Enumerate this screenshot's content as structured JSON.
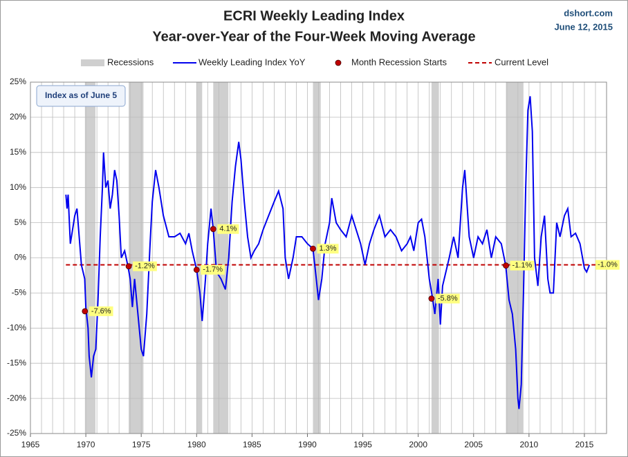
{
  "chart_data": {
    "type": "line",
    "title": "ECRI Weekly Leading Index",
    "subtitle": "Year-over-Year of the Four-Week Moving Average",
    "source": "dshort.com",
    "date": "June 12, 2015",
    "annotation": "Index as of June 5",
    "xlim": [
      1965,
      2017
    ],
    "xticks": [
      1965,
      1970,
      1975,
      1980,
      1985,
      1990,
      1995,
      2000,
      2005,
      2010,
      2015
    ],
    "ylim": [
      -25,
      25
    ],
    "yticks": [
      {
        "value": -25,
        "label": "-25%"
      },
      {
        "value": -20,
        "label": "-20%"
      },
      {
        "value": -15,
        "label": "-15%"
      },
      {
        "value": -10,
        "label": "-10%"
      },
      {
        "value": -5,
        "label": "-5%"
      },
      {
        "value": 0,
        "label": "0%"
      },
      {
        "value": 5,
        "label": "5%"
      },
      {
        "value": 10,
        "label": "10%"
      },
      {
        "value": 15,
        "label": "15%"
      },
      {
        "value": 20,
        "label": "20%"
      },
      {
        "value": 25,
        "label": "25%"
      }
    ],
    "grid": true,
    "recessions": {
      "name": "Recessions",
      "color": "#cfcfcf",
      "periods": [
        [
          1969.92,
          1970.87
        ],
        [
          1973.87,
          1975.2
        ],
        [
          1980.0,
          1980.5
        ],
        [
          1981.5,
          1982.87
        ],
        [
          1990.5,
          1991.2
        ],
        [
          2001.2,
          2001.87
        ],
        [
          2007.92,
          2009.5
        ]
      ]
    },
    "x": [
      1968.2,
      1968.3,
      1968.4,
      1968.6,
      1968.8,
      1969.0,
      1969.2,
      1969.4,
      1969.6,
      1969.9,
      1970.0,
      1970.2,
      1970.3,
      1970.5,
      1970.7,
      1970.9,
      1971.1,
      1971.3,
      1971.5,
      1971.6,
      1971.8,
      1972.0,
      1972.2,
      1972.4,
      1972.6,
      1972.8,
      1973.0,
      1973.2,
      1973.5,
      1973.8,
      1974.0,
      1974.2,
      1974.4,
      1974.7,
      1975.0,
      1975.2,
      1975.5,
      1975.8,
      1976.0,
      1976.3,
      1976.6,
      1977.0,
      1977.5,
      1978.0,
      1978.5,
      1979.0,
      1979.3,
      1979.6,
      1980.0,
      1980.3,
      1980.5,
      1980.8,
      1981.0,
      1981.3,
      1981.5,
      1981.8,
      1982.2,
      1982.6,
      1982.9,
      1983.2,
      1983.5,
      1983.8,
      1984.0,
      1984.3,
      1984.6,
      1984.9,
      1985.2,
      1985.6,
      1986.0,
      1986.5,
      1987.0,
      1987.4,
      1987.8,
      1988.0,
      1988.3,
      1988.7,
      1989.0,
      1989.5,
      1990.0,
      1990.5,
      1990.8,
      1991.0,
      1991.3,
      1991.6,
      1992.0,
      1992.2,
      1992.6,
      1993.0,
      1993.5,
      1994.0,
      1994.4,
      1994.8,
      1995.2,
      1995.6,
      1996.0,
      1996.5,
      1997.0,
      1997.5,
      1998.0,
      1998.5,
      1999.0,
      1999.3,
      1999.6,
      2000.0,
      2000.3,
      2000.6,
      2001.0,
      2001.3,
      2001.5,
      2001.8,
      2002.0,
      2002.2,
      2002.5,
      2002.8,
      2003.2,
      2003.6,
      2004.0,
      2004.2,
      2004.6,
      2005.0,
      2005.4,
      2005.8,
      2006.2,
      2006.6,
      2007.0,
      2007.5,
      2007.9,
      2008.2,
      2008.5,
      2008.8,
      2009.0,
      2009.1,
      2009.3,
      2009.5,
      2009.7,
      2009.9,
      2010.1,
      2010.3,
      2010.5,
      2010.8,
      2011.1,
      2011.4,
      2011.7,
      2011.9,
      2012.2,
      2012.5,
      2012.8,
      2013.2,
      2013.5,
      2013.8,
      2014.2,
      2014.6,
      2015.0,
      2015.2,
      2015.45
    ],
    "series": [
      {
        "name": "Weekly Leading Index YoY",
        "color": "#0000ee",
        "values": [
          9,
          7,
          9,
          2,
          4,
          6,
          7,
          3,
          -1,
          -3,
          -7,
          -10,
          -14,
          -17,
          -14,
          -13,
          -6,
          3,
          10,
          15,
          10,
          11,
          7,
          9,
          12.5,
          11,
          6,
          0,
          1,
          -1.2,
          -3,
          -7,
          -3,
          -8,
          -13,
          -14,
          -8,
          2,
          8,
          12.5,
          10,
          6,
          3,
          3,
          3.5,
          2,
          3.5,
          1,
          -1.7,
          -5,
          -9,
          -3,
          2,
          7,
          4.1,
          -2,
          -3,
          -4.5,
          0,
          8,
          13,
          16.5,
          14,
          8,
          3,
          0,
          1,
          2,
          4,
          6,
          8,
          9.5,
          7,
          0,
          -3,
          0,
          3,
          3,
          2,
          1.3,
          -3,
          -6,
          -3,
          2,
          5,
          8.5,
          5,
          4,
          3,
          6,
          4,
          2,
          -1,
          2,
          4,
          6,
          3,
          4,
          3,
          1,
          2,
          3,
          1,
          5,
          5.5,
          3,
          -3,
          -5.8,
          -8,
          -3,
          -9.5,
          -4,
          -2,
          0,
          3,
          0,
          10,
          12.5,
          3,
          0,
          3,
          2,
          4,
          0,
          3,
          2,
          -1.1,
          -6,
          -8,
          -13,
          -20,
          -21.5,
          -18,
          -5,
          10,
          21,
          23,
          18,
          0,
          -4,
          3,
          6,
          -3,
          -5,
          -5,
          5,
          3,
          6,
          7,
          3,
          3.5,
          2,
          -1.5,
          -2,
          -1.0
        ]
      }
    ],
    "recession_starts": {
      "name": "Month Recession Starts",
      "color": "#c00000",
      "x": [
        1969.92,
        1973.87,
        1980.0,
        1981.5,
        1990.5,
        2001.2,
        2007.92
      ],
      "values": [
        -7.6,
        -1.2,
        -1.7,
        4.1,
        1.3,
        -5.8,
        -1.1
      ],
      "value_labels": [
        "-7.6%",
        "-1.2%",
        "-1.7%",
        "4.1%",
        "1.3%",
        "-5.8%",
        "-1.1%"
      ]
    },
    "current_level": {
      "name": "Current Level",
      "color": "#c00000",
      "value": -1.0,
      "value_label": "-1.0%"
    }
  }
}
